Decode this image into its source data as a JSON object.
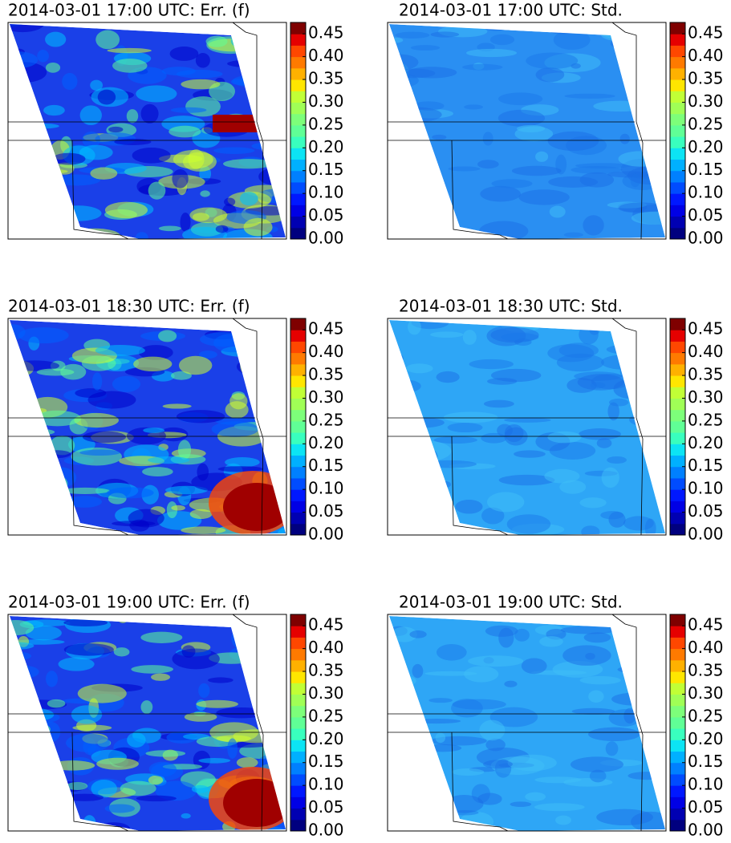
{
  "colorbar": {
    "ylim": [
      0,
      0.475
    ],
    "ticks": [
      {
        "value": 0,
        "label": "0.00"
      },
      0.05,
      {
        "value": 0.1,
        "label": "0.10"
      },
      0.15,
      {
        "value": 0.2,
        "label": "0.20"
      },
      0.25,
      {
        "value": 0.3,
        "label": "0.30"
      },
      0.35,
      {
        "value": 0.4,
        "label": "0.40"
      },
      0.45
    ],
    "colors": [
      "#00007f",
      "#0000b2",
      "#0000e5",
      "#0018ff",
      "#004cff",
      "#0080ff",
      "#00b0ff",
      "#0ce4f4",
      "#39ffbe",
      "#60ff96",
      "#7dff7a",
      "#a0ff56",
      "#c1ff36",
      "#ffe600",
      "#ffb100",
      "#ff7a00",
      "#ff4700",
      "#e50000",
      "#7f0000"
    ]
  },
  "panels": [
    {
      "title": "2014-03-01 17:00 UTC: Err. (f)",
      "fill": "#1a40e8"
    },
    {
      "title": "2014-03-01 17:00 UTC: Std.",
      "fill": "#2a8ff2"
    },
    {
      "title": "2014-03-01 18:30 UTC: Err. (f)",
      "fill": "#1a40e8"
    },
    {
      "title": "2014-03-01 18:30 UTC: Std.",
      "fill": "#2ea6f6"
    },
    {
      "title": "2014-03-01 19:00 UTC: Err. (f)",
      "fill": "#1a40e8"
    },
    {
      "title": "2014-03-01 19:00 UTC: Std.",
      "fill": "#2ea6f6"
    }
  ]
}
